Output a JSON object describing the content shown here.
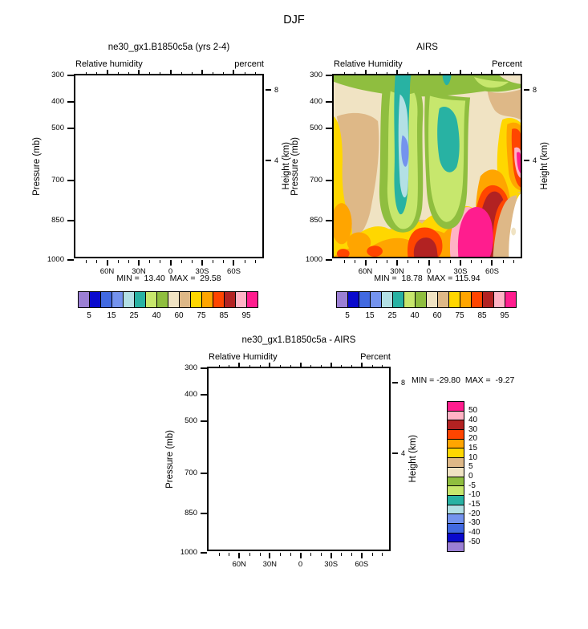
{
  "figure_title": "DJF",
  "panels": {
    "model": {
      "title": "ne30_gx1.B1850c5a (yrs 2-4)",
      "left_label": "Relative humidity",
      "right_label": "percent",
      "stats": "MIN =  13.40  MAX =  29.58"
    },
    "obs": {
      "title": "AIRS",
      "left_label": "Relative Humidity",
      "right_label": "Percent",
      "stats": "MIN =  18.78  MAX = 115.94"
    },
    "diff": {
      "title": "ne30_gx1.B1850c5a - AIRS",
      "left_label": "Relative Humidity",
      "right_label": "Percent",
      "stats": "MIN = -29.80  MAX =  -9.27"
    }
  },
  "axes": {
    "pressure_label": "Pressure (mb)",
    "height_label": "Height (km)",
    "y_ticks": [
      {
        "label": "300",
        "f": 0.0
      },
      {
        "label": "400",
        "f": 0.1429
      },
      {
        "label": "500",
        "f": 0.2857
      },
      {
        "label": "700",
        "f": 0.5714
      },
      {
        "label": "850",
        "f": 0.7857
      },
      {
        "label": "1000",
        "f": 1.0
      }
    ],
    "x_major": [
      {
        "label": "60N",
        "f": 0.1667
      },
      {
        "label": "30N",
        "f": 0.3333
      },
      {
        "label": "0",
        "f": 0.5
      },
      {
        "label": "30S",
        "f": 0.6667
      },
      {
        "label": "60S",
        "f": 0.8333
      }
    ],
    "x_minor_f": [
      0.0556,
      0.1111,
      0.2222,
      0.2778,
      0.3889,
      0.4444,
      0.5556,
      0.6111,
      0.7222,
      0.7778,
      0.8889,
      0.9444
    ],
    "height_ticks": [
      {
        "label": "8",
        "f": 0.078
      },
      {
        "label": "4",
        "f": 0.461
      }
    ]
  },
  "palette": {
    "rh_colors": [
      "#9B7FD4",
      "#0A0ACD",
      "#4169E1",
      "#7493EE",
      "#B3E0E5",
      "#28B2A3",
      "#C7E76D",
      "#8FBE3F",
      "#F0E3C3",
      "#DEB887",
      "#FFD700",
      "#FFA500",
      "#FF4500",
      "#B22222",
      "#FFB3C5",
      "#FF1D8E"
    ],
    "frame": "#000000",
    "background": "#FFFFFF",
    "diff_color_order": "reversed (magenta at top to purple at bottom)"
  },
  "colorbars": {
    "rh": {
      "labels": [
        "5",
        "15",
        "25",
        "40",
        "60",
        "75",
        "85",
        "95"
      ],
      "boundaries": [
        1,
        3,
        5,
        7,
        9,
        11,
        13,
        15
      ]
    },
    "diff": {
      "labels": [
        "50",
        "40",
        "30",
        "20",
        "15",
        "10",
        "5",
        "0",
        "-5",
        "-10",
        "-15",
        "-20",
        "-30",
        "-40",
        "-50"
      ],
      "boundaries": [
        1,
        2,
        3,
        4,
        5,
        6,
        7,
        8,
        9,
        10,
        11,
        12,
        13,
        14,
        15
      ]
    }
  },
  "chart_data": [
    {
      "panel": "top-left",
      "type": "contour",
      "title": "ne30_gx1.B1850c5a (yrs 2-4)",
      "variable": "Relative humidity",
      "units": "percent",
      "season": "DJF",
      "x_axis": {
        "ticks": [
          "60N",
          "30N",
          "0",
          "30S",
          "60S"
        ],
        "range": [
          "90N",
          "90S"
        ]
      },
      "y_axis": {
        "label": "Pressure (mb)",
        "ticks": [
          300,
          400,
          500,
          700,
          850,
          1000
        ],
        "range": [
          300,
          1000
        ],
        "scale": "linear"
      },
      "y2_axis": {
        "label": "Height (km)",
        "ticks": [
          8,
          4
        ]
      },
      "min": 13.4,
      "max": 29.58,
      "contour_levels": [
        5,
        10,
        15,
        20,
        25,
        30,
        40,
        50,
        60,
        70,
        75,
        80,
        85,
        90,
        95
      ],
      "rendered_field": "blank interior (no shading drawn)"
    },
    {
      "panel": "top-right",
      "type": "contour",
      "title": "AIRS",
      "variable": "Relative Humidity",
      "units": "Percent",
      "season": "DJF",
      "x_axis": {
        "ticks": [
          "60N",
          "30N",
          "0",
          "30S",
          "60S"
        ],
        "range": [
          "90N",
          "90S"
        ]
      },
      "y_axis": {
        "label": "Pressure (mb)",
        "ticks": [
          300,
          400,
          500,
          700,
          850,
          1000
        ],
        "range": [
          300,
          1000
        ],
        "scale": "linear"
      },
      "y2_axis": {
        "label": "Height (km)",
        "ticks": [
          8,
          4
        ]
      },
      "min": 18.78,
      "max": 115.94,
      "contour_levels": [
        5,
        10,
        15,
        20,
        25,
        30,
        40,
        50,
        60,
        70,
        75,
        80,
        85,
        90,
        95
      ],
      "rendered_field": "filled contours",
      "features": [
        "dry column 20-30% (light blue with 20-25% blue core near 500-600 mb) around 25-30N from 350 to 800 mb",
        "dry pocket 30-40% (teal) near 15-25S between 400 and 650 mb",
        "green 40-60% band across upper levels with two U-shaped lobes reaching ~850 mb near 25N and 25S",
        "beige/tan 60-75% mid-level band and high-latitude regions",
        "yellow-orange 75-90% near surface across most latitudes and along left (90N) edge below ~500 mb",
        "dark red 90-95% pockets near the equator and ~40S below 900 mb",
        "magenta >95% maximum near 45-65S below ~830 mb with pink 95% rim",
        "white notch at bottom-right (high southern latitudes) near the surface"
      ]
    },
    {
      "panel": "bottom",
      "type": "contour-difference",
      "title": "ne30_gx1.B1850c5a - AIRS",
      "variable": "Relative Humidity",
      "units": "Percent",
      "season": "DJF",
      "x_axis": {
        "ticks": [
          "60N",
          "30N",
          "0",
          "30S",
          "60S"
        ],
        "range": [
          "90N",
          "90S"
        ]
      },
      "y_axis": {
        "label": "Pressure (mb)",
        "ticks": [
          300,
          400,
          500,
          700,
          850,
          1000
        ],
        "range": [
          300,
          1000
        ],
        "scale": "linear"
      },
      "y2_axis": {
        "label": "Height (km)",
        "ticks": [
          8,
          4
        ]
      },
      "min": -29.8,
      "max": -9.27,
      "contour_levels": [
        -50,
        -40,
        -30,
        -20,
        -15,
        -10,
        -5,
        0,
        5,
        10,
        15,
        20,
        30,
        40,
        50
      ],
      "rendered_field": "blank interior (no shading drawn)"
    }
  ]
}
